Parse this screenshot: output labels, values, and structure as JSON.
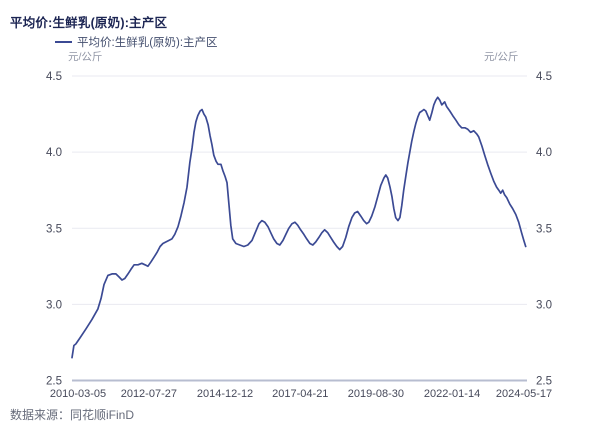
{
  "header": {
    "title": "平均价:生鲜乳(原奶):主产区"
  },
  "legend": {
    "label": "平均价:生鲜乳(原奶):主产区",
    "marker_color": "#3b4a94"
  },
  "axes": {
    "unit_left": "元/公斤",
    "unit_right": "元/公斤"
  },
  "footer": {
    "source": "数据来源：同花顺iFinD"
  },
  "chart_data": {
    "type": "line",
    "title": "平均价:生鲜乳(原奶):主产区",
    "series_name": "平均价:生鲜乳(原奶):主产区",
    "ylabel": "元/公斤",
    "xlabel": "",
    "x_type": "time_decimal_year",
    "x_range": [
      2010.17,
      2024.38
    ],
    "ylim": [
      2.5,
      4.5
    ],
    "yticks": [
      2.5,
      3.0,
      3.5,
      4.0,
      4.5
    ],
    "xticks": [
      {
        "pos": 2010.17,
        "label": "2010-03-05"
      },
      {
        "pos": 2012.57,
        "label": "2012-07-27"
      },
      {
        "pos": 2014.95,
        "label": "2014-12-12"
      },
      {
        "pos": 2017.3,
        "label": "2017-04-21"
      },
      {
        "pos": 2019.66,
        "label": "2019-08-30"
      },
      {
        "pos": 2022.04,
        "label": "2022-01-14"
      },
      {
        "pos": 2024.38,
        "label": "2024-05-17"
      }
    ],
    "grid": "horizontal",
    "legend_position": "top-left",
    "line_color": "#3b4a94",
    "grid_color": "#e9eaf1",
    "axis_line_color": "#b7bdd0",
    "tick_color": "#46495a",
    "points": [
      [
        2010.17,
        2.65
      ],
      [
        2010.23,
        2.73
      ],
      [
        2010.29,
        2.74
      ],
      [
        2010.42,
        2.78
      ],
      [
        2010.61,
        2.84
      ],
      [
        2010.79,
        2.9
      ],
      [
        2010.98,
        2.97
      ],
      [
        2011.08,
        3.04
      ],
      [
        2011.17,
        3.13
      ],
      [
        2011.29,
        3.19
      ],
      [
        2011.42,
        3.2
      ],
      [
        2011.54,
        3.2
      ],
      [
        2011.64,
        3.18
      ],
      [
        2011.73,
        3.16
      ],
      [
        2011.82,
        3.17
      ],
      [
        2011.92,
        3.2
      ],
      [
        2012.01,
        3.23
      ],
      [
        2012.11,
        3.26
      ],
      [
        2012.23,
        3.26
      ],
      [
        2012.35,
        3.27
      ],
      [
        2012.45,
        3.26
      ],
      [
        2012.54,
        3.25
      ],
      [
        2012.64,
        3.28
      ],
      [
        2012.73,
        3.31
      ],
      [
        2012.82,
        3.34
      ],
      [
        2012.92,
        3.38
      ],
      [
        2013.01,
        3.4
      ],
      [
        2013.1,
        3.41
      ],
      [
        2013.2,
        3.42
      ],
      [
        2013.29,
        3.43
      ],
      [
        2013.38,
        3.46
      ],
      [
        2013.48,
        3.51
      ],
      [
        2013.57,
        3.58
      ],
      [
        2013.67,
        3.67
      ],
      [
        2013.76,
        3.77
      ],
      [
        2013.85,
        3.93
      ],
      [
        2013.92,
        4.03
      ],
      [
        2013.98,
        4.13
      ],
      [
        2014.04,
        4.2
      ],
      [
        2014.1,
        4.24
      ],
      [
        2014.17,
        4.27
      ],
      [
        2014.23,
        4.28
      ],
      [
        2014.29,
        4.25
      ],
      [
        2014.35,
        4.23
      ],
      [
        2014.42,
        4.18
      ],
      [
        2014.48,
        4.11
      ],
      [
        2014.54,
        4.05
      ],
      [
        2014.6,
        3.98
      ],
      [
        2014.67,
        3.94
      ],
      [
        2014.73,
        3.92
      ],
      [
        2014.82,
        3.92
      ],
      [
        2014.88,
        3.88
      ],
      [
        2014.95,
        3.84
      ],
      [
        2015.01,
        3.8
      ],
      [
        2015.07,
        3.66
      ],
      [
        2015.13,
        3.52
      ],
      [
        2015.19,
        3.43
      ],
      [
        2015.29,
        3.4
      ],
      [
        2015.41,
        3.39
      ],
      [
        2015.54,
        3.38
      ],
      [
        2015.66,
        3.39
      ],
      [
        2015.79,
        3.42
      ],
      [
        2015.91,
        3.48
      ],
      [
        2016.01,
        3.53
      ],
      [
        2016.1,
        3.55
      ],
      [
        2016.19,
        3.54
      ],
      [
        2016.29,
        3.51
      ],
      [
        2016.38,
        3.47
      ],
      [
        2016.47,
        3.43
      ],
      [
        2016.57,
        3.4
      ],
      [
        2016.66,
        3.39
      ],
      [
        2016.76,
        3.42
      ],
      [
        2016.85,
        3.46
      ],
      [
        2016.94,
        3.5
      ],
      [
        2017.04,
        3.53
      ],
      [
        2017.13,
        3.54
      ],
      [
        2017.22,
        3.52
      ],
      [
        2017.31,
        3.49
      ],
      [
        2017.41,
        3.46
      ],
      [
        2017.5,
        3.43
      ],
      [
        2017.6,
        3.4
      ],
      [
        2017.69,
        3.39
      ],
      [
        2017.78,
        3.41
      ],
      [
        2017.88,
        3.44
      ],
      [
        2017.97,
        3.47
      ],
      [
        2018.06,
        3.49
      ],
      [
        2018.16,
        3.47
      ],
      [
        2018.25,
        3.44
      ],
      [
        2018.34,
        3.41
      ],
      [
        2018.44,
        3.38
      ],
      [
        2018.53,
        3.36
      ],
      [
        2018.62,
        3.38
      ],
      [
        2018.72,
        3.44
      ],
      [
        2018.81,
        3.51
      ],
      [
        2018.91,
        3.57
      ],
      [
        2019.0,
        3.6
      ],
      [
        2019.09,
        3.61
      ],
      [
        2019.19,
        3.58
      ],
      [
        2019.28,
        3.55
      ],
      [
        2019.37,
        3.53
      ],
      [
        2019.44,
        3.54
      ],
      [
        2019.53,
        3.58
      ],
      [
        2019.63,
        3.64
      ],
      [
        2019.72,
        3.71
      ],
      [
        2019.81,
        3.78
      ],
      [
        2019.91,
        3.83
      ],
      [
        2019.97,
        3.85
      ],
      [
        2020.03,
        3.83
      ],
      [
        2020.1,
        3.77
      ],
      [
        2020.16,
        3.71
      ],
      [
        2020.22,
        3.63
      ],
      [
        2020.28,
        3.57
      ],
      [
        2020.35,
        3.55
      ],
      [
        2020.41,
        3.57
      ],
      [
        2020.47,
        3.65
      ],
      [
        2020.53,
        3.75
      ],
      [
        2020.6,
        3.85
      ],
      [
        2020.66,
        3.93
      ],
      [
        2020.72,
        4.0
      ],
      [
        2020.78,
        4.07
      ],
      [
        2020.85,
        4.14
      ],
      [
        2020.91,
        4.19
      ],
      [
        2020.97,
        4.23
      ],
      [
        2021.03,
        4.26
      ],
      [
        2021.1,
        4.27
      ],
      [
        2021.16,
        4.28
      ],
      [
        2021.22,
        4.27
      ],
      [
        2021.28,
        4.24
      ],
      [
        2021.34,
        4.21
      ],
      [
        2021.41,
        4.26
      ],
      [
        2021.47,
        4.31
      ],
      [
        2021.53,
        4.34
      ],
      [
        2021.59,
        4.36
      ],
      [
        2021.66,
        4.34
      ],
      [
        2021.72,
        4.31
      ],
      [
        2021.81,
        4.33
      ],
      [
        2021.87,
        4.3
      ],
      [
        2021.97,
        4.27
      ],
      [
        2022.06,
        4.24
      ],
      [
        2022.16,
        4.21
      ],
      [
        2022.25,
        4.18
      ],
      [
        2022.34,
        4.16
      ],
      [
        2022.44,
        4.16
      ],
      [
        2022.53,
        4.15
      ],
      [
        2022.62,
        4.13
      ],
      [
        2022.72,
        4.14
      ],
      [
        2022.81,
        4.12
      ],
      [
        2022.87,
        4.1
      ],
      [
        2022.97,
        4.04
      ],
      [
        2023.06,
        3.98
      ],
      [
        2023.15,
        3.92
      ],
      [
        2023.25,
        3.86
      ],
      [
        2023.34,
        3.81
      ],
      [
        2023.43,
        3.77
      ],
      [
        2023.5,
        3.75
      ],
      [
        2023.56,
        3.73
      ],
      [
        2023.62,
        3.75
      ],
      [
        2023.68,
        3.72
      ],
      [
        2023.75,
        3.7
      ],
      [
        2023.84,
        3.66
      ],
      [
        2023.93,
        3.63
      ],
      [
        2024.03,
        3.59
      ],
      [
        2024.12,
        3.54
      ],
      [
        2024.21,
        3.47
      ],
      [
        2024.28,
        3.42
      ],
      [
        2024.34,
        3.38
      ]
    ]
  }
}
